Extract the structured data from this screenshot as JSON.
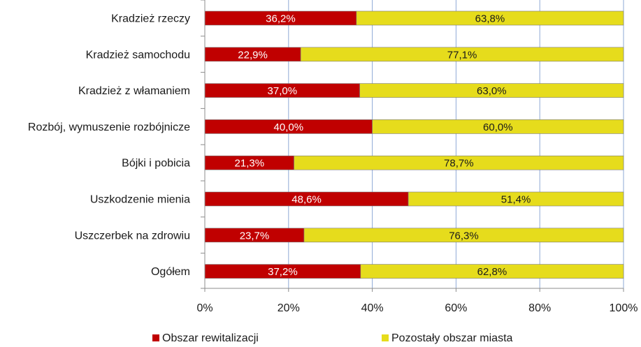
{
  "chart_data": {
    "type": "bar",
    "orientation": "horizontal",
    "stacked": "percent",
    "title": "",
    "categories": [
      "Kradzież rzeczy",
      "Kradzież samochodu",
      "Kradzież z włamaniem",
      "Rozbój, wymuszenie rozbójnicze",
      "Bójki i pobicia",
      "Uszkodzenie mienia",
      "Uszczerbek na zdrowiu",
      "Ogółem"
    ],
    "series": [
      {
        "name": "Obszar rewitalizacji",
        "color": "#C00000",
        "label_color": "#FFFFFF",
        "values": [
          36.2,
          22.9,
          37.0,
          40.0,
          21.3,
          48.6,
          23.7,
          37.2
        ],
        "labels": [
          "36,2%",
          "22,9%",
          "37,0%",
          "40,0%",
          "21,3%",
          "48,6%",
          "23,7%",
          "37,2%"
        ]
      },
      {
        "name": "Pozostały obszar miasta",
        "color": "#E6DC1C",
        "label_color": "#1A1A1A",
        "values": [
          63.8,
          77.1,
          63.0,
          60.0,
          78.7,
          51.4,
          76.3,
          62.8
        ],
        "labels": [
          "63,8%",
          "77,1%",
          "63,0%",
          "60,0%",
          "78,7%",
          "51,4%",
          "76,3%",
          "62,8%"
        ]
      }
    ],
    "xlim": [
      0,
      100
    ],
    "xticks": [
      0,
      20,
      40,
      60,
      80,
      100
    ],
    "xtick_labels": [
      "0%",
      "20%",
      "40%",
      "60%",
      "80%",
      "100%"
    ],
    "xlabel": "",
    "ylabel": "",
    "grid": "vertical",
    "legend": "bottom"
  }
}
